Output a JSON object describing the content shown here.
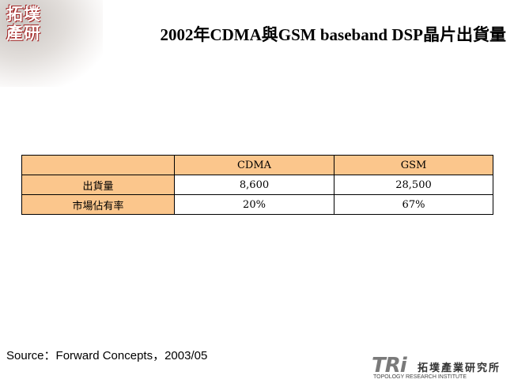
{
  "logo": {
    "line1": "拓墣",
    "line2": "產研"
  },
  "header": {
    "title": "2002年CDMA與GSM baseband DSP晶片出貨量"
  },
  "table": {
    "columns": [
      "CDMA",
      "GSM"
    ],
    "rows": [
      [
        "出貨量",
        "8,600",
        "28,500"
      ],
      [
        "市場佔有率",
        "20%",
        "67%"
      ]
    ]
  },
  "source": "Source：Forward Concepts，2003/05",
  "footer": {
    "brand": "TRi",
    "name": "拓墣產業研究所",
    "subtitle": "TOPOLOGY RESEARCH INSTITUTE"
  }
}
